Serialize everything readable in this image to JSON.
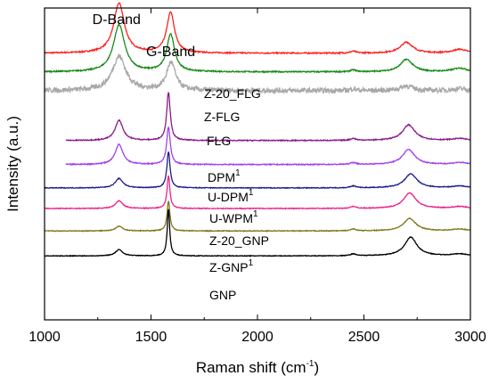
{
  "chart_data": {
    "type": "line",
    "title": "",
    "xlabel": "Raman shift (cm",
    "xlabel_sup": "-1",
    "xlabel_end": ")",
    "ylabel": "Intensity (a.u.)",
    "xlim": [
      1000,
      3000
    ],
    "x_ticks": [
      1000,
      1500,
      2000,
      2500,
      3000
    ],
    "x_tick_labels": [
      "1000",
      "1500",
      "2000",
      "2500",
      "3000"
    ],
    "y_ticks": false,
    "grid": false,
    "legend": "inline labels",
    "annotations": [
      {
        "text": "D-Band",
        "x": 1350
      },
      {
        "text": "G-Band",
        "x": 1590
      }
    ],
    "peak_positions_cm-1": {
      "D": 1350,
      "G": 1582,
      "2D": 2710
    },
    "series": [
      {
        "name": "Z-20_FLG",
        "label_sup": "",
        "color": "#ff2020",
        "x_start": 1000,
        "baseline": 0.855,
        "d_peak": 0.16,
        "g_peak": 0.13,
        "g_center": 1592,
        "g_width": 22,
        "d_width": 30,
        "d2_peak": 0.035,
        "d2_center": 2700,
        "noise": 0.002
      },
      {
        "name": "Z-FLG",
        "label_sup": "",
        "color": "#1a8a1a",
        "x_start": 1000,
        "baseline": 0.795,
        "d_peak": 0.15,
        "g_peak": 0.12,
        "g_center": 1592,
        "g_width": 22,
        "d_width": 32,
        "d2_peak": 0.04,
        "d2_center": 2700,
        "noise": 0.002
      },
      {
        "name": "FLG",
        "label_sup": "",
        "color": "#a8a8a8",
        "x_start": 1000,
        "baseline": 0.735,
        "d_peak": 0.11,
        "g_peak": 0.09,
        "g_center": 1594,
        "g_width": 25,
        "d_width": 38,
        "d2_peak": 0.015,
        "d2_center": 2700,
        "noise": 0.008
      },
      {
        "name": "DPM",
        "label_sup": "1",
        "color": "#8b1a8b",
        "x_start": 1100,
        "baseline": 0.575,
        "d_peak": 0.065,
        "g_peak": 0.155,
        "g_center": 1582,
        "g_width": 10,
        "d_width": 22,
        "d2_peak": 0.05,
        "d2_center": 2710,
        "noise": 0.0015
      },
      {
        "name": "U-DPM",
        "label_sup": "1",
        "color": "#a040f0",
        "x_start": 1100,
        "baseline": 0.498,
        "d_peak": 0.065,
        "g_peak": 0.12,
        "g_center": 1582,
        "g_width": 10,
        "d_width": 22,
        "d2_peak": 0.048,
        "d2_center": 2710,
        "noise": 0.0015
      },
      {
        "name": "U-WPM",
        "label_sup": "1",
        "color": "#1c1c8c",
        "x_start": 1000,
        "baseline": 0.423,
        "d_peak": 0.03,
        "g_peak": 0.115,
        "g_center": 1582,
        "g_width": 9,
        "d_width": 22,
        "d2_peak": 0.045,
        "d2_center": 2720,
        "noise": 0.0012
      },
      {
        "name": "Z-20_GNP",
        "label_sup": "",
        "color": "#ee2288",
        "x_start": 1000,
        "baseline": 0.357,
        "d_peak": 0.025,
        "g_peak": 0.105,
        "g_center": 1582,
        "g_width": 8,
        "d_width": 20,
        "d2_peak": 0.05,
        "d2_center": 2715,
        "noise": 0.0012
      },
      {
        "name": "Z-GNP",
        "label_sup": "1",
        "color": "#7a7a1c",
        "x_start": 1000,
        "baseline": 0.285,
        "d_peak": 0.015,
        "g_peak": 0.095,
        "g_center": 1582,
        "g_width": 8,
        "d_width": 20,
        "d2_peak": 0.04,
        "d2_center": 2715,
        "noise": 0.0012
      },
      {
        "name": "GNP",
        "label_sup": "",
        "color": "#000000",
        "x_start": 1000,
        "baseline": 0.205,
        "d_peak": 0.02,
        "g_peak": 0.15,
        "g_center": 1582,
        "g_width": 7,
        "d_width": 20,
        "d2_peak": 0.06,
        "d2_center": 2720,
        "noise": 0.001
      }
    ]
  }
}
